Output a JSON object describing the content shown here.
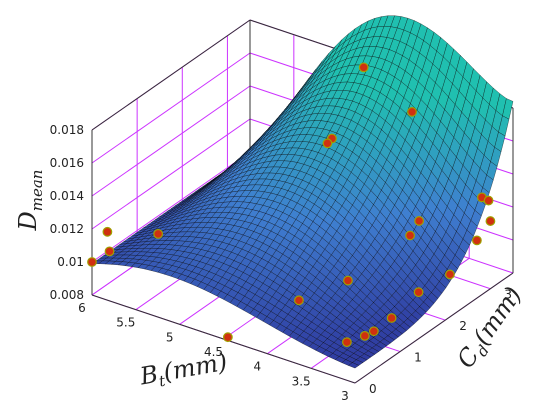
{
  "chart_data": {
    "type": "surface3d",
    "title": "",
    "xlabel": {
      "main": "B",
      "sub": "t",
      "unit": "(mm)"
    },
    "ylabel": {
      "main": "C",
      "sub": "d",
      "unit": "(mm)"
    },
    "zlabel": {
      "main": "D",
      "sub": "mean"
    },
    "xlim": [
      3,
      6
    ],
    "ylim": [
      0,
      3.5
    ],
    "zlim": [
      0.008,
      0.018
    ],
    "x_ticks": [
      3,
      3.5,
      4,
      4.5,
      5,
      5.5,
      6
    ],
    "x_tick_labels": [
      "3",
      "3.5",
      "4",
      "4.5",
      "5",
      "5.5",
      "6"
    ],
    "y_ticks": [
      0,
      1,
      2,
      3
    ],
    "y_tick_labels": [
      "0",
      "1",
      "2",
      "3"
    ],
    "z_ticks": [
      0.008,
      0.01,
      0.012,
      0.014,
      0.016,
      0.018
    ],
    "z_tick_labels": [
      "0.008",
      "0.01",
      "0.012",
      "0.014",
      "0.016",
      "0.018"
    ],
    "grid": true,
    "colors": {
      "grid": "#cc33ff",
      "surface_low": "#2c2d96",
      "surface_mid": "#3f7fd0",
      "surface_high": "#20c0b0",
      "mesh": "#000000",
      "point_fill": "#d03010",
      "point_edge": "#a0a000"
    },
    "points": [
      {
        "x": 6.0,
        "y": 0.0,
        "z": 0.01
      },
      {
        "x": 5.85,
        "y": 0.05,
        "z": 0.012
      },
      {
        "x": 5.8,
        "y": 0.0,
        "z": 0.011
      },
      {
        "x": 5.4,
        "y": 0.3,
        "z": 0.0122
      },
      {
        "x": 4.6,
        "y": 3.3,
        "z": 0.018
      },
      {
        "x": 4.55,
        "y": 2.5,
        "z": 0.0153
      },
      {
        "x": 4.55,
        "y": 2.4,
        "z": 0.0152
      },
      {
        "x": 4.1,
        "y": 3.4,
        "z": 0.016
      },
      {
        "x": 4.45,
        "y": 0.0,
        "z": 0.0082
      },
      {
        "x": 4.0,
        "y": 0.7,
        "z": 0.0099
      },
      {
        "x": 3.75,
        "y": 1.3,
        "z": 0.0104
      },
      {
        "x": 3.35,
        "y": 2.1,
        "z": 0.0132
      },
      {
        "x": 3.35,
        "y": 1.9,
        "z": 0.0127
      },
      {
        "x": 3.2,
        "y": 3.2,
        "z": 0.0128
      },
      {
        "x": 3.15,
        "y": 3.25,
        "z": 0.0126
      },
      {
        "x": 3.35,
        "y": 0.5,
        "z": 0.0089
      },
      {
        "x": 3.3,
        "y": 0.8,
        "z": 0.0088
      },
      {
        "x": 3.2,
        "y": 1.2,
        "z": 0.0093
      },
      {
        "x": 3.15,
        "y": 1.7,
        "z": 0.01
      },
      {
        "x": 3.05,
        "y": 2.2,
        "z": 0.0103
      },
      {
        "x": 3.0,
        "y": 2.7,
        "z": 0.0115
      },
      {
        "x": 3.0,
        "y": 3.0,
        "z": 0.0121
      },
      {
        "x": 3.3,
        "y": 1.0,
        "z": 0.0087
      }
    ]
  }
}
